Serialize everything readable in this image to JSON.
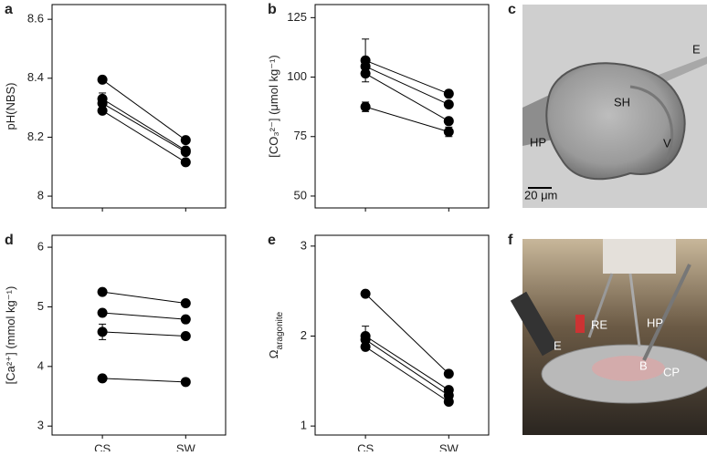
{
  "chart_data": [
    {
      "type": "line",
      "panel": "a",
      "ylabel": "pH(NBS)",
      "categories": [
        null,
        null
      ],
      "color": "#000000",
      "ylim": [
        7.96,
        8.65
      ],
      "yticks": [
        8,
        8.2,
        8.4,
        8.6
      ],
      "series": [
        {
          "values": [
            8.395,
            8.19
          ]
        },
        {
          "values": [
            8.33,
            8.155
          ],
          "errors": [
            0.02,
            null
          ]
        },
        {
          "values": [
            8.315,
            8.15
          ]
        },
        {
          "values": [
            8.29,
            8.115
          ]
        }
      ]
    },
    {
      "type": "line",
      "panel": "b",
      "ylabel": "[CO₃²⁻] (μmol kg⁻¹)",
      "categories": [
        null,
        null
      ],
      "color": "#000000",
      "ylim": [
        45,
        130.5
      ],
      "yticks": [
        50,
        75,
        100,
        125
      ],
      "series": [
        {
          "values": [
            107,
            93
          ],
          "errors": [
            9,
            null
          ]
        },
        {
          "values": [
            104.5,
            88.5
          ]
        },
        {
          "values": [
            101.5,
            81.5
          ]
        },
        {
          "values": [
            87.5,
            77
          ],
          "errors": [
            2,
            2
          ]
        }
      ]
    },
    {
      "type": "line",
      "panel": "d",
      "ylabel": "[Ca²⁺] (mmol kg⁻¹)",
      "categories": [
        "CS",
        "SW"
      ],
      "color": "#000000",
      "ylim": [
        2.85,
        6.2
      ],
      "yticks": [
        3,
        4,
        5,
        6
      ],
      "series": [
        {
          "values": [
            5.25,
            5.06
          ]
        },
        {
          "values": [
            4.9,
            4.79
          ]
        },
        {
          "values": [
            4.58,
            4.51
          ],
          "errors": [
            0.13,
            null
          ]
        },
        {
          "values": [
            3.8,
            3.74
          ]
        }
      ]
    },
    {
      "type": "line",
      "panel": "e",
      "ylabel": "Ω",
      "ylabel_sub": "aragonite",
      "categories": [
        "CS",
        "SW"
      ],
      "color": "#000000",
      "ylim": [
        0.9,
        3.12
      ],
      "yticks": [
        1,
        2,
        3
      ],
      "series": [
        {
          "values": [
            2.47,
            1.58
          ]
        },
        {
          "values": [
            2.0,
            1.4
          ],
          "errors": [
            0.11,
            null
          ]
        },
        {
          "values": [
            1.96,
            1.34
          ]
        },
        {
          "values": [
            1.88,
            1.27
          ]
        }
      ]
    }
  ],
  "photos": [
    {
      "panel": "c",
      "labels": [
        "E",
        "SH",
        "HP",
        "V",
        "20 μm"
      ]
    },
    {
      "panel": "f",
      "labels": [
        "RE",
        "HP",
        "E",
        "B",
        "CP"
      ]
    }
  ]
}
